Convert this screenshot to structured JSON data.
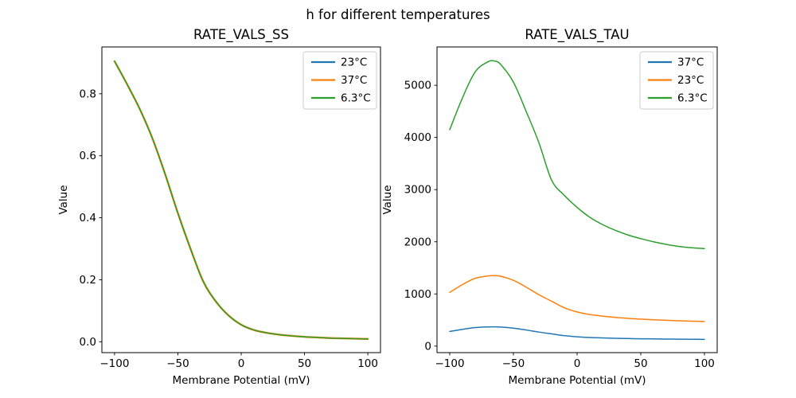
{
  "figure": {
    "suptitle": "h for different temperatures",
    "background": "#ffffff"
  },
  "colors": {
    "blue": "#1f77b4",
    "orange": "#ff7f0e",
    "green": "#2ca02c",
    "axis": "#000000",
    "legend_border": "#cccccc",
    "legend_face": "#ffffff"
  },
  "chart_data": [
    {
      "type": "line",
      "title": "RATE_VALS_SS",
      "xlabel": "Membrane Potential (mV)",
      "ylabel": "Value",
      "xlim": [
        -110,
        110
      ],
      "ylim": [
        -0.035,
        0.951
      ],
      "xticks": [
        -100,
        -50,
        0,
        50,
        100
      ],
      "xtick_labels": [
        "−100",
        "−50",
        "0",
        "50",
        "100"
      ],
      "yticks": [
        0.0,
        0.2,
        0.4,
        0.6,
        0.8
      ],
      "ytick_labels": [
        "0.0",
        "0.2",
        "0.4",
        "0.6",
        "0.8"
      ],
      "grid": false,
      "legend_position": "upper right",
      "x": [
        -100,
        -90,
        -80,
        -70,
        -60,
        -50,
        -40,
        -30,
        -20,
        -10,
        0,
        10,
        20,
        30,
        40,
        50,
        60,
        70,
        80,
        90,
        100
      ],
      "series": [
        {
          "name": "23°C",
          "color": "#1f77b4",
          "values": [
            0.905,
            0.83,
            0.75,
            0.655,
            0.54,
            0.415,
            0.3,
            0.195,
            0.13,
            0.085,
            0.055,
            0.038,
            0.029,
            0.023,
            0.019,
            0.016,
            0.014,
            0.012,
            0.011,
            0.01,
            0.009
          ]
        },
        {
          "name": "37°C",
          "color": "#ff7f0e",
          "values": [
            0.905,
            0.83,
            0.75,
            0.655,
            0.54,
            0.415,
            0.3,
            0.195,
            0.13,
            0.085,
            0.055,
            0.038,
            0.029,
            0.023,
            0.019,
            0.016,
            0.014,
            0.012,
            0.011,
            0.01,
            0.009
          ]
        },
        {
          "name": "6.3°C",
          "color": "#2ca02c",
          "values": [
            0.905,
            0.83,
            0.75,
            0.655,
            0.54,
            0.415,
            0.3,
            0.195,
            0.13,
            0.085,
            0.055,
            0.038,
            0.029,
            0.023,
            0.019,
            0.016,
            0.014,
            0.012,
            0.011,
            0.01,
            0.009
          ]
        }
      ]
    },
    {
      "type": "line",
      "title": "RATE_VALS_TAU",
      "xlabel": "Membrane Potential (mV)",
      "ylabel": "Value",
      "xlim": [
        -110,
        110
      ],
      "ylim": [
        -125,
        5735
      ],
      "xticks": [
        -100,
        -50,
        0,
        50,
        100
      ],
      "xtick_labels": [
        "−100",
        "−50",
        "0",
        "50",
        "100"
      ],
      "yticks": [
        0,
        1000,
        2000,
        3000,
        4000,
        5000
      ],
      "ytick_labels": [
        "0",
        "1000",
        "2000",
        "3000",
        "4000",
        "5000"
      ],
      "grid": false,
      "legend_position": "upper right",
      "x": [
        -100,
        -90,
        -80,
        -70,
        -65,
        -60,
        -50,
        -40,
        -30,
        -20,
        -10,
        0,
        10,
        20,
        30,
        40,
        50,
        60,
        70,
        80,
        90,
        100
      ],
      "series": [
        {
          "name": "37°C",
          "color": "#1f77b4",
          "values": [
            281,
            322,
            355,
            368,
            369,
            366,
            344,
            309,
            269,
            235,
            201,
            179,
            165,
            157,
            150,
            145,
            141,
            138,
            135,
            133,
            131,
            129
          ]
        },
        {
          "name": "23°C",
          "color": "#ff7f0e",
          "values": [
            1030,
            1180,
            1300,
            1345,
            1350,
            1340,
            1260,
            1130,
            985,
            860,
            735,
            655,
            605,
            575,
            550,
            532,
            517,
            505,
            495,
            486,
            478,
            472
          ]
        },
        {
          "name": "6.3°C",
          "color": "#2ca02c",
          "values": [
            4150,
            4760,
            5260,
            5450,
            5465,
            5400,
            5060,
            4500,
            3900,
            3180,
            2890,
            2660,
            2470,
            2330,
            2220,
            2130,
            2060,
            2000,
            1950,
            1910,
            1885,
            1870
          ]
        }
      ]
    }
  ]
}
